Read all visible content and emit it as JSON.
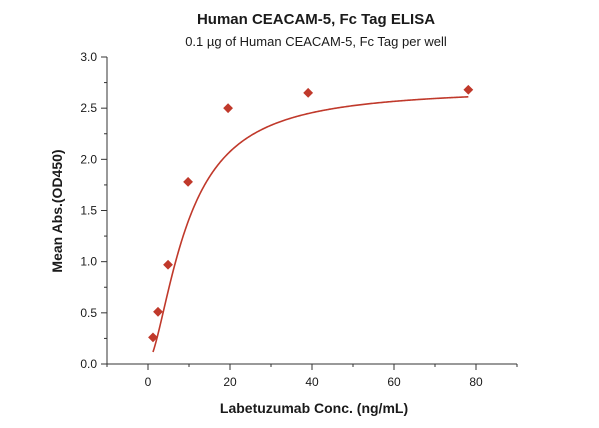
{
  "chart_data": {
    "type": "scatter",
    "title": "Human CEACAM-5, Fc Tag ELISA",
    "subtitle": "0.1 µg of Human CEACAM-5, Fc Tag per well",
    "xlabel": "Labetuzumab Conc. (ng/mL)",
    "ylabel": "Mean Abs.(OD450)",
    "xlim": [
      -10,
      90
    ],
    "ylim": [
      0,
      3.0
    ],
    "xticks": [
      0,
      20,
      40,
      60,
      80
    ],
    "yticks": [
      0.0,
      0.5,
      1.0,
      1.5,
      2.0,
      2.5,
      3.0
    ],
    "xtick_labels": [
      "0",
      "20",
      "40",
      "60",
      "80"
    ],
    "ytick_labels": [
      "0.0",
      "0.5",
      "1.0",
      "1.5",
      "2.0",
      "2.5",
      "3.0"
    ],
    "grid": false,
    "legend": "none",
    "series": [
      {
        "marker": "diamond",
        "color": "#c0392b",
        "x": [
          1.22,
          2.44,
          4.88,
          9.77,
          19.53,
          39.06,
          78.13
        ],
        "y": [
          0.26,
          0.51,
          0.97,
          1.78,
          2.5,
          2.65,
          2.68
        ],
        "fit_curve": "4-parameter logistic"
      }
    ]
  }
}
